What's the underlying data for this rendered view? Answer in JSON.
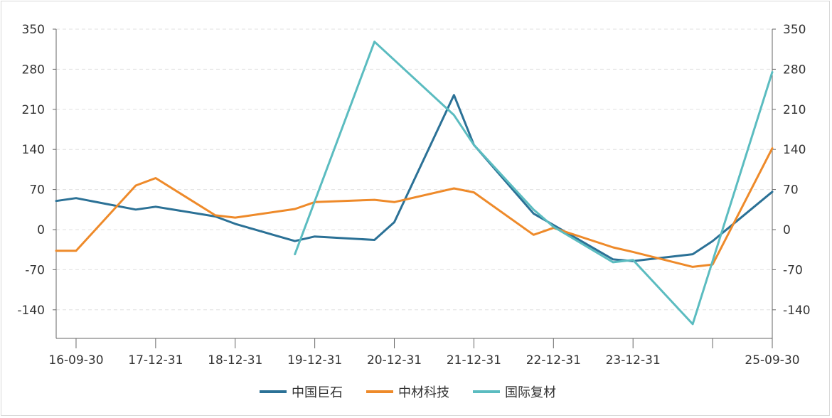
{
  "chart_data": {
    "type": "line",
    "x_labels": [
      "16-09-30",
      "17-12-31",
      "18-12-31",
      "19-12-31",
      "20-12-31",
      "21-12-31",
      "22-12-31",
      "23-12-31",
      "",
      "25-09-30"
    ],
    "y_ticks": [
      350,
      280,
      210,
      140,
      70,
      0,
      -70,
      -140
    ],
    "ylim": [
      -190,
      350
    ],
    "grid": true,
    "legend_position": "bottom-center",
    "colors": {
      "axis": "#666666",
      "grid": "#e0e0e0",
      "text": "#333333"
    },
    "series": [
      {
        "name": "中国巨石",
        "color": "#2b7196",
        "points": [
          {
            "x": 0,
            "y": 50
          },
          {
            "x": 0.25,
            "y": 55
          },
          {
            "x": 1,
            "y": 35
          },
          {
            "x": 1.25,
            "y": 40
          },
          {
            "x": 2,
            "y": 23
          },
          {
            "x": 2.25,
            "y": 10
          },
          {
            "x": 3,
            "y": -20
          },
          {
            "x": 3.25,
            "y": -12
          },
          {
            "x": 4,
            "y": -18
          },
          {
            "x": 4.25,
            "y": 13
          },
          {
            "x": 5,
            "y": 235
          },
          {
            "x": 5.25,
            "y": 148
          },
          {
            "x": 6,
            "y": 28
          },
          {
            "x": 6.25,
            "y": 8
          },
          {
            "x": 7,
            "y": -52
          },
          {
            "x": 7.25,
            "y": -55
          },
          {
            "x": 8,
            "y": -43
          },
          {
            "x": 8.25,
            "y": -20
          },
          {
            "x": 9,
            "y": 66
          }
        ]
      },
      {
        "name": "中材科技",
        "color": "#ee8a2a",
        "points": [
          {
            "x": 0,
            "y": -37
          },
          {
            "x": 0.25,
            "y": -37
          },
          {
            "x": 1,
            "y": 77
          },
          {
            "x": 1.25,
            "y": 90
          },
          {
            "x": 2,
            "y": 25
          },
          {
            "x": 2.25,
            "y": 21
          },
          {
            "x": 3,
            "y": 36
          },
          {
            "x": 3.25,
            "y": 48
          },
          {
            "x": 4,
            "y": 52
          },
          {
            "x": 4.25,
            "y": 48
          },
          {
            "x": 5,
            "y": 72
          },
          {
            "x": 5.25,
            "y": 65
          },
          {
            "x": 6,
            "y": -9
          },
          {
            "x": 6.25,
            "y": 3
          },
          {
            "x": 7,
            "y": -31
          },
          {
            "x": 7.25,
            "y": -39
          },
          {
            "x": 8,
            "y": -65
          },
          {
            "x": 8.25,
            "y": -61
          },
          {
            "x": 9,
            "y": 142
          }
        ]
      },
      {
        "name": "国际复材",
        "color": "#5bbcc0",
        "points": [
          {
            "x": 3,
            "y": -43
          },
          {
            "x": 4,
            "y": 328
          },
          {
            "x": 5,
            "y": 200
          },
          {
            "x": 5.25,
            "y": 148
          },
          {
            "x": 6,
            "y": 35
          },
          {
            "x": 6.25,
            "y": 5
          },
          {
            "x": 7,
            "y": -57
          },
          {
            "x": 7.25,
            "y": -53
          },
          {
            "x": 8,
            "y": -165
          },
          {
            "x": 9,
            "y": 275
          }
        ]
      }
    ]
  }
}
